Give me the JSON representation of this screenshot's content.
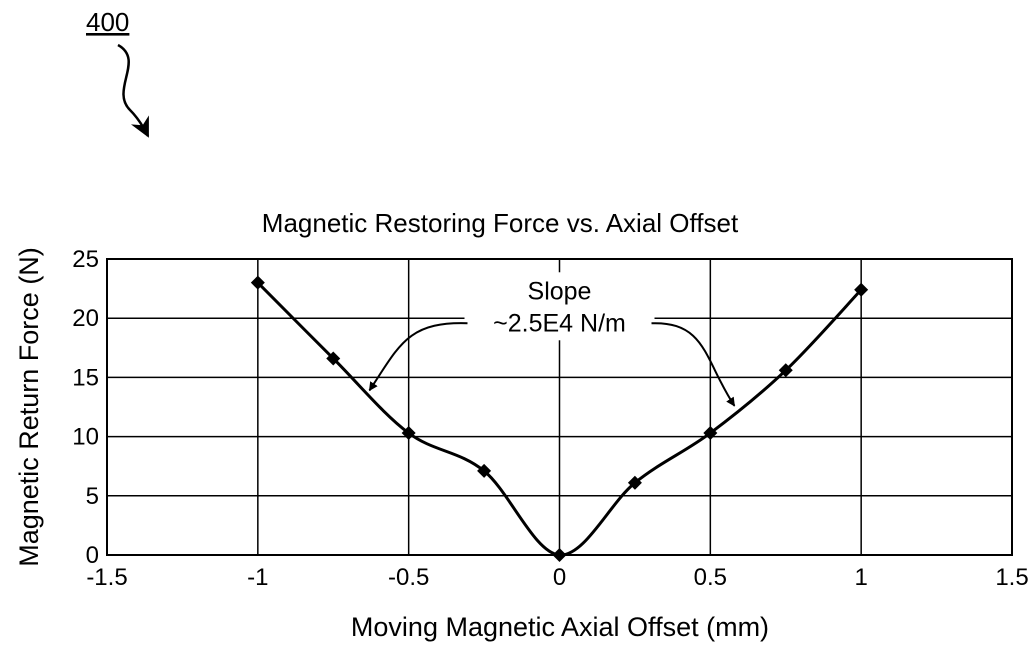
{
  "figure_number": "400",
  "chart_data": {
    "type": "line",
    "title": "Magnetic Restoring Force vs. Axial Offset",
    "xlabel": "Moving Magnetic Axial Offset (mm)",
    "ylabel": "Magnetic Return Force (N)",
    "xlim": [
      -1.5,
      1.5
    ],
    "ylim": [
      0,
      25
    ],
    "xticks": [
      -1.5,
      -1,
      -0.5,
      0,
      0.5,
      1,
      1.5
    ],
    "yticks": [
      0,
      5,
      10,
      15,
      20,
      25
    ],
    "xtick_labels": [
      "-1.5",
      "-1",
      "-0.5",
      "0",
      "0.5",
      "1",
      "1.5"
    ],
    "ytick_labels": [
      "0",
      "5",
      "10",
      "15",
      "20",
      "25"
    ],
    "grid": true,
    "series": [
      {
        "x": [
          -1.0,
          -0.75,
          -0.5,
          -0.25,
          0.0,
          0.25,
          0.5,
          0.75,
          1.0
        ],
        "y": [
          23.0,
          16.6,
          10.3,
          7.1,
          0.0,
          6.1,
          10.3,
          15.6,
          22.4
        ],
        "marker": "diamond",
        "color": "#000000"
      }
    ],
    "annotations": [
      {
        "line1": "Slope",
        "line2": "~2.5E4 N/m",
        "at_x": 0.0,
        "at_y": 20.5,
        "points_to": [
          [
            -0.63,
            13.9
          ],
          [
            0.58,
            12.6
          ]
        ]
      }
    ]
  }
}
